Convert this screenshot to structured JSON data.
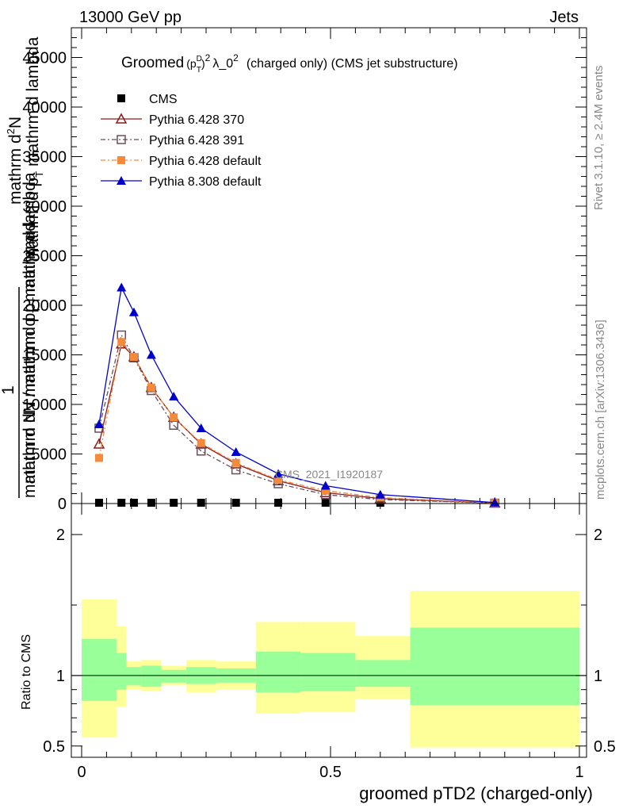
{
  "header": {
    "left": "13000 GeV pp",
    "right": "Jets"
  },
  "title_parts": {
    "word": "Groomed",
    "p": "(p",
    "p_sup": "D",
    "p_sub": "T",
    "close": ")",
    "exp": "2",
    "lambda": "λ_0",
    "lambda_exp": "2",
    "rest": "(charged only) (CMS jet substructure)"
  },
  "side_labels": {
    "rivet": "Rivet 3.1.10, ≥ 2.4M events",
    "mcplots": "mcplots.cern.ch [arXiv:1306.3436]"
  },
  "watermark": "CMS_2021_I1920187",
  "ylabel_main": {
    "line1": "mathrm d",
    "line1_sup": "2",
    "line1_rest": "N",
    "line2": "mathrm d p",
    "line2_sub": "T",
    "line2_rest": " mathrm d lambda",
    "frac_num": "1",
    "line3": "mathrm dN / mathrm d p",
    "line3_sub": "T",
    "line3_rest": " mathrm d",
    "line4": "mathrm d N / mathrm d p",
    "line4_sub": "T",
    "line4_rest": " mathrm d lambda"
  },
  "chart_data": {
    "type": "line",
    "main": {
      "xlabel": "groomed pTD2 (charged-only)",
      "ylim": [
        0,
        48000
      ],
      "yticks": [
        0,
        5000,
        10000,
        15000,
        20000,
        25000,
        30000,
        35000,
        40000,
        45000
      ],
      "yticklabels": [
        "0",
        "5000",
        "10000",
        "15000",
        "20000",
        "25000",
        "30000",
        "35000",
        "40000",
        "45000"
      ],
      "legend_position": "top-left",
      "series": [
        {
          "name": "CMS",
          "marker": "square-filled",
          "color": "#000000",
          "x": [
            0.035,
            0.08,
            0.105,
            0.14,
            0.185,
            0.24,
            0.31,
            0.395,
            0.49,
            0.6,
            0.83
          ],
          "y": [
            0,
            0,
            0,
            0,
            0,
            0,
            0,
            0,
            0,
            0,
            0
          ]
        },
        {
          "name": "Pythia 6.428 370",
          "marker": "triangle-open",
          "color": "#8b1a1a",
          "dash": "",
          "x": [
            0.035,
            0.08,
            0.105,
            0.14,
            0.185,
            0.24,
            0.31,
            0.395,
            0.49,
            0.6,
            0.83
          ],
          "y": [
            6000,
            16100,
            14800,
            11700,
            8700,
            6000,
            4000,
            2300,
            1100,
            500,
            50
          ]
        },
        {
          "name": "Pythia 6.428 391",
          "marker": "square-open",
          "color": "#6b4d5a",
          "dash": "6,3,2,3",
          "x": [
            0.035,
            0.08,
            0.105,
            0.14,
            0.185,
            0.24,
            0.31,
            0.395,
            0.49,
            0.6,
            0.83
          ],
          "y": [
            7600,
            17000,
            14700,
            11400,
            7900,
            5300,
            3400,
            2000,
            900,
            400,
            40
          ]
        },
        {
          "name": "Pythia 6.428 default",
          "marker": "square-filled",
          "color": "#f58a3a",
          "dash": "6,3,2,3",
          "x": [
            0.035,
            0.08,
            0.105,
            0.14,
            0.185,
            0.24,
            0.31,
            0.395,
            0.49,
            0.6,
            0.83
          ],
          "y": [
            4600,
            16300,
            14800,
            11700,
            8700,
            6100,
            4100,
            2400,
            1300,
            600,
            60
          ]
        },
        {
          "name": "Pythia 8.308 default",
          "marker": "triangle-filled",
          "color": "#0000cc",
          "dash": "",
          "x": [
            0.035,
            0.08,
            0.105,
            0.14,
            0.185,
            0.24,
            0.31,
            0.395,
            0.49,
            0.6,
            0.83
          ],
          "y": [
            8000,
            21800,
            19300,
            15000,
            10800,
            7600,
            5200,
            3000,
            1800,
            900,
            100
          ]
        }
      ]
    },
    "ratio": {
      "ylabel": "Ratio to CMS",
      "xlabel": "groomed pTD2 (charged-only)",
      "xlim": [
        0,
        1
      ],
      "ylim": [
        0.42,
        2.22
      ],
      "xticks": [
        0,
        0.5,
        1
      ],
      "xticklabels": [
        "0",
        "0.5",
        "1"
      ],
      "yticks": [
        0.5,
        1,
        2
      ],
      "yticklabels": [
        "0.5",
        "1",
        "2"
      ],
      "bins": [
        {
          "x0": 0.0,
          "x1": 0.07,
          "in_lo": 0.82,
          "in_hi": 1.26,
          "out_lo": 0.56,
          "out_hi": 1.54
        },
        {
          "x0": 0.07,
          "x1": 0.09,
          "in_lo": 0.9,
          "in_hi": 1.16,
          "out_lo": 0.78,
          "out_hi": 1.35
        },
        {
          "x0": 0.09,
          "x1": 0.12,
          "in_lo": 0.93,
          "in_hi": 1.06,
          "out_lo": 0.9,
          "out_hi": 1.1
        },
        {
          "x0": 0.12,
          "x1": 0.16,
          "in_lo": 0.92,
          "in_hi": 1.07,
          "out_lo": 0.89,
          "out_hi": 1.11
        },
        {
          "x0": 0.16,
          "x1": 0.21,
          "in_lo": 0.95,
          "in_hi": 1.04,
          "out_lo": 0.93,
          "out_hi": 1.07
        },
        {
          "x0": 0.21,
          "x1": 0.27,
          "in_lo": 0.94,
          "in_hi": 1.06,
          "out_lo": 0.88,
          "out_hi": 1.11
        },
        {
          "x0": 0.27,
          "x1": 0.35,
          "in_lo": 0.95,
          "in_hi": 1.05,
          "out_lo": 0.9,
          "out_hi": 1.1
        },
        {
          "x0": 0.35,
          "x1": 0.44,
          "in_lo": 0.88,
          "in_hi": 1.17,
          "out_lo": 0.73,
          "out_hi": 1.38
        },
        {
          "x0": 0.44,
          "x1": 0.55,
          "in_lo": 0.89,
          "in_hi": 1.16,
          "out_lo": 0.74,
          "out_hi": 1.38
        },
        {
          "x0": 0.55,
          "x1": 0.66,
          "in_lo": 0.92,
          "in_hi": 1.11,
          "out_lo": 0.83,
          "out_hi": 1.28
        },
        {
          "x0": 0.66,
          "x1": 1.0,
          "in_lo": 0.79,
          "in_hi": 1.34,
          "out_lo": 0.49,
          "out_hi": 1.6
        }
      ],
      "band_colors": {
        "inner": "#99ff99",
        "outer": "#ffff99"
      }
    }
  }
}
